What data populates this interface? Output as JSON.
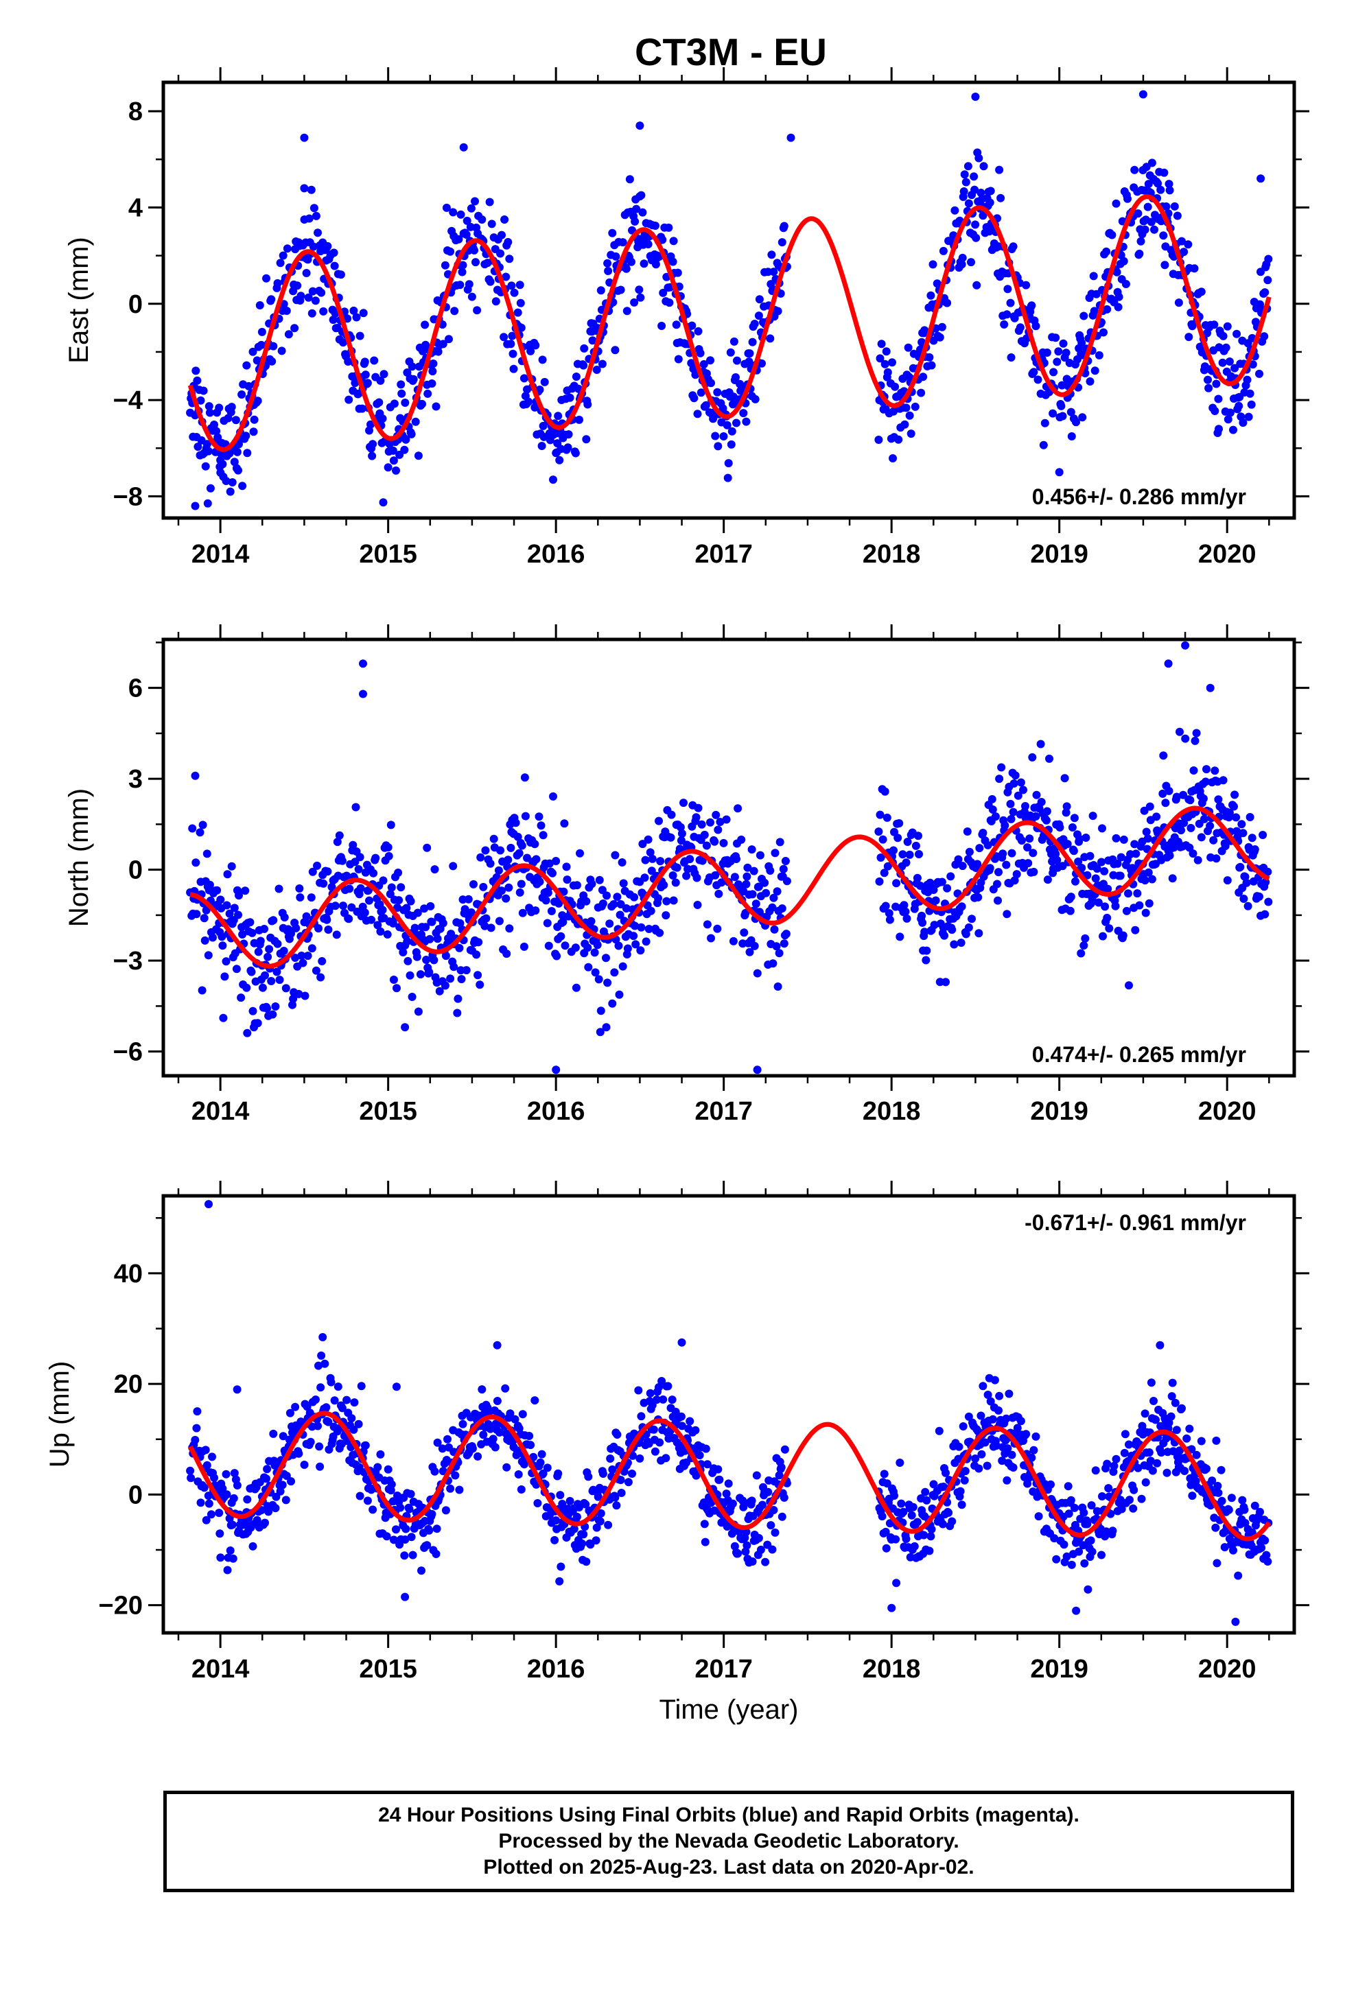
{
  "chart_data": {
    "title": "CT3M - EU",
    "type": "scatter",
    "xlabel": "Time (year)",
    "x_ticks": [
      "2014",
      "2015",
      "2016",
      "2017",
      "2018",
      "2019",
      "2020"
    ],
    "xlim": [
      2013.66,
      2020.4
    ],
    "series_colors": {
      "observations": "#0000ff",
      "fit": "#ff0000"
    },
    "data_range": [
      2013.82,
      2020.25
    ],
    "gap": [
      2017.38,
      2017.92
    ],
    "panels": [
      {
        "id": "east",
        "ylabel": "East (mm)",
        "ylim": [
          -8.9,
          9.2
        ],
        "y_ticks": [
          -8,
          -4,
          0,
          4,
          8
        ],
        "rate_text": "0.456+/- 0.286 mm/yr",
        "rate_position": "bottom-right",
        "seasonal_fit": {
          "trend_mm_per_yr": 0.456,
          "annual_amplitude_mm": 4.0,
          "peak_phase": 0.52,
          "offset_mm": -0.7
        },
        "scatter_sd_mm": 1.1,
        "points": [
          [
            2014.0,
            -6.5
          ],
          [
            2014.2,
            -4.2
          ],
          [
            2014.5,
            4.8
          ],
          [
            2014.5,
            6.9
          ],
          [
            2015.0,
            -6.8
          ],
          [
            2015.45,
            6.5
          ],
          [
            2016.0,
            -6.2
          ],
          [
            2016.5,
            7.4
          ],
          [
            2017.4,
            6.9
          ],
          [
            2018.5,
            8.6
          ],
          [
            2019.0,
            -7.0
          ],
          [
            2019.5,
            8.7
          ],
          [
            2019.95,
            -5.2
          ],
          [
            2020.2,
            5.2
          ],
          [
            2013.85,
            -8.4
          ]
        ]
      },
      {
        "id": "north",
        "ylabel": "North (mm)",
        "ylim": [
          -6.8,
          7.6
        ],
        "y_ticks": [
          -6,
          -3,
          0,
          3,
          6
        ],
        "rate_text": "0.474+/- 0.265 mm/yr",
        "rate_position": "bottom-right",
        "seasonal_fit": {
          "trend_mm_per_yr": 0.474,
          "annual_amplitude_mm": 1.3,
          "peak_phase": 0.8,
          "offset_mm": -0.6
        },
        "scatter_sd_mm": 1.0,
        "points": [
          [
            2014.85,
            6.8
          ],
          [
            2014.85,
            5.8
          ],
          [
            2015.1,
            -5.2
          ],
          [
            2016.0,
            -6.6
          ],
          [
            2016.3,
            -5.2
          ],
          [
            2017.2,
            -6.6
          ],
          [
            2019.65,
            6.8
          ],
          [
            2019.75,
            7.4
          ],
          [
            2019.9,
            6.0
          ],
          [
            2014.2,
            -5.2
          ],
          [
            2013.85,
            3.1
          ]
        ]
      },
      {
        "id": "up",
        "ylabel": "Up (mm)",
        "ylim": [
          -25,
          54
        ],
        "y_ticks": [
          -20,
          0,
          20,
          40
        ],
        "rate_text": "-0.671+/- 0.961 mm/yr",
        "rate_position": "top-right",
        "seasonal_fit": {
          "trend_mm_per_yr": -0.671,
          "annual_amplitude_mm": 9.5,
          "peak_phase": 0.62,
          "offset_mm": 3.6
        },
        "scatter_sd_mm": 3.6,
        "points": [
          [
            2013.93,
            52.5
          ],
          [
            2015.65,
            27.0
          ],
          [
            2016.75,
            27.5
          ],
          [
            2019.6,
            27.0
          ],
          [
            2020.05,
            -23.0
          ],
          [
            2015.1,
            -18.5
          ],
          [
            2018.0,
            -20.5
          ],
          [
            2019.1,
            -21.0
          ],
          [
            2014.1,
            19.0
          ],
          [
            2015.05,
            19.5
          ]
        ]
      }
    ]
  },
  "footer": {
    "line1": "24 Hour Positions Using Final Orbits (blue) and Rapid Orbits (magenta).",
    "line2": "Processed by the Nevada Geodetic Laboratory.",
    "line3": "Plotted on 2025-Aug-23. Last data on 2020-Apr-02."
  }
}
